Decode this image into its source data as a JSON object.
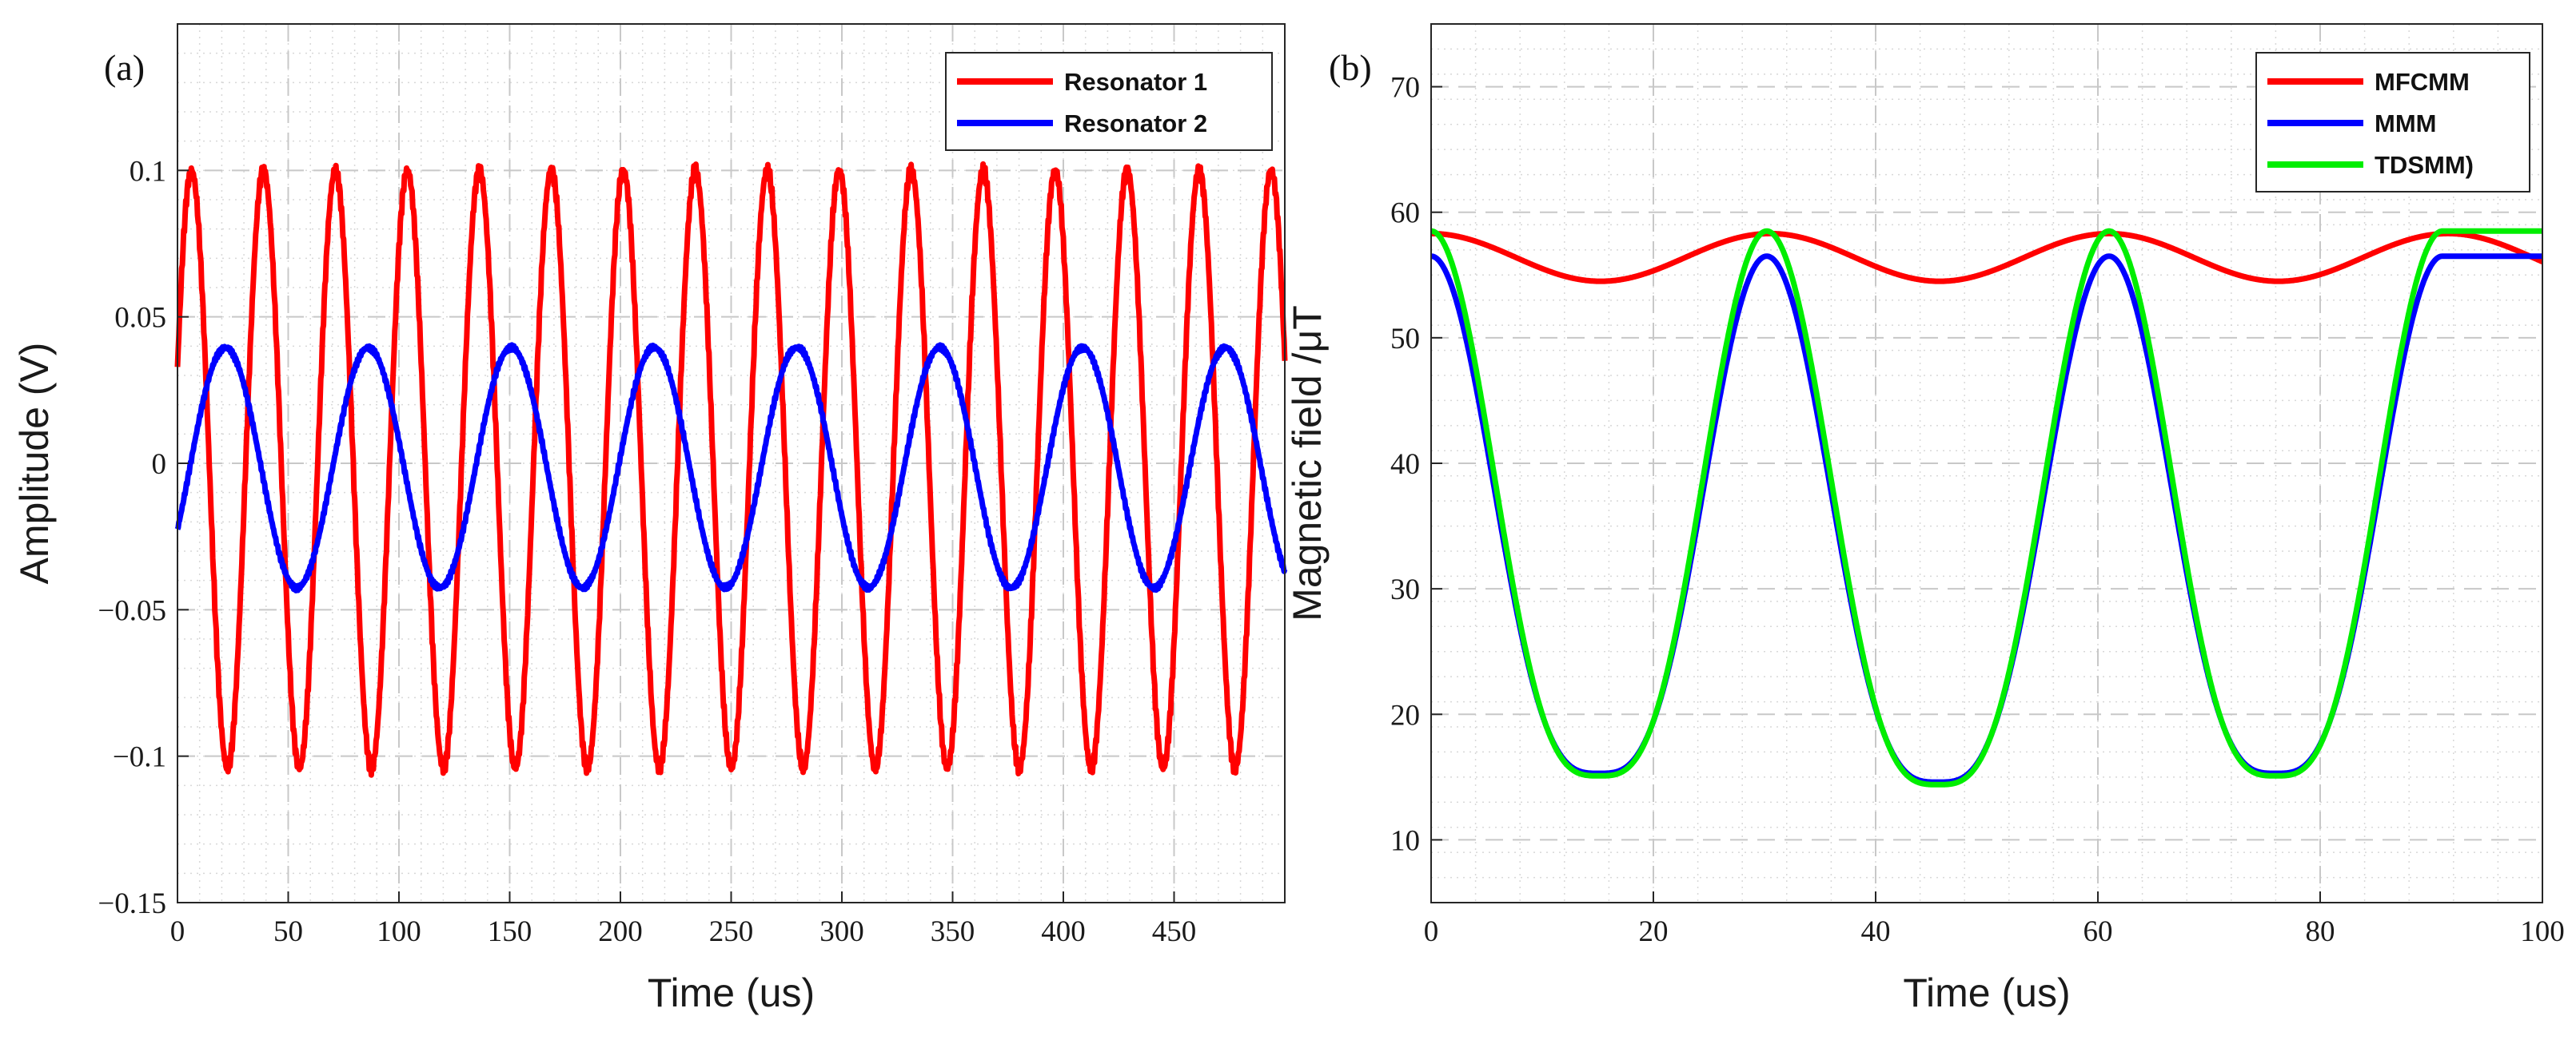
{
  "chart_data": [
    {
      "type": "line",
      "panel_label": "(a)",
      "xlabel": "Time (us)",
      "ylabel": "Amplitude (V)",
      "xlim": [
        0,
        500
      ],
      "ylim": [
        -0.15,
        0.15
      ],
      "xticks": [
        0,
        50,
        100,
        150,
        200,
        250,
        300,
        350,
        400,
        450
      ],
      "xtick_labels": [
        "0",
        "50",
        "100",
        "150",
        "200",
        "250",
        "300",
        "350",
        "400",
        "450"
      ],
      "yticks": [
        -0.15,
        -0.1,
        -0.05,
        0,
        0.05,
        0.1
      ],
      "ytick_labels": [
        "−0.15",
        "−0.1",
        "−0.05",
        "0",
        "0.05",
        "0.1"
      ],
      "grid": true,
      "legend_position": "top-right",
      "series": [
        {
          "name": "Resonator 1",
          "color": "#ff0000",
          "model": "sine",
          "amplitude": 0.102,
          "period": 32.5,
          "phase_deg": 20,
          "offset": -0.002
        },
        {
          "name": "Resonator 2",
          "color": "#0000ff",
          "model": "sine",
          "amplitude": 0.041,
          "period": 64.5,
          "phase_deg": -31,
          "offset": -0.0015
        }
      ]
    },
    {
      "type": "line",
      "panel_label": "(b)",
      "xlabel": "Time (us)",
      "ylabel": "Magnetic field /μT",
      "xlim": [
        0,
        100
      ],
      "ylim": [
        5,
        75
      ],
      "xticks": [
        0,
        20,
        40,
        60,
        80,
        100
      ],
      "xtick_labels": [
        "0",
        "20",
        "40",
        "60",
        "80",
        "100"
      ],
      "yticks": [
        10,
        20,
        30,
        40,
        50,
        60,
        70
      ],
      "ytick_labels": [
        "10",
        "20",
        "30",
        "40",
        "50",
        "60",
        "70"
      ],
      "grid": true,
      "legend_position": "top-right",
      "series": [
        {
          "name": "MFCMM",
          "color": "#ff0000",
          "model": "cosine",
          "mean": 56.4,
          "amplitude": 1.9,
          "period": 30.5
        },
        {
          "name": "MMM",
          "color": "#0000ff",
          "model": "peaks",
          "peak_times": [
            0,
            30.2,
            61,
            91
          ],
          "peak_values": [
            56.5,
            56.5,
            56.5,
            56.5
          ],
          "minimum_values": [
            15.3,
            14.6,
            15.3
          ]
        },
        {
          "name": "TDSMM)",
          "color": "#00ee00",
          "model": "peaks",
          "peak_times": [
            0,
            30.2,
            61,
            91
          ],
          "peak_values": [
            58.5,
            58.5,
            58.5,
            58.5
          ],
          "minimum_values": [
            15.1,
            14.4,
            15.1
          ]
        }
      ]
    }
  ]
}
